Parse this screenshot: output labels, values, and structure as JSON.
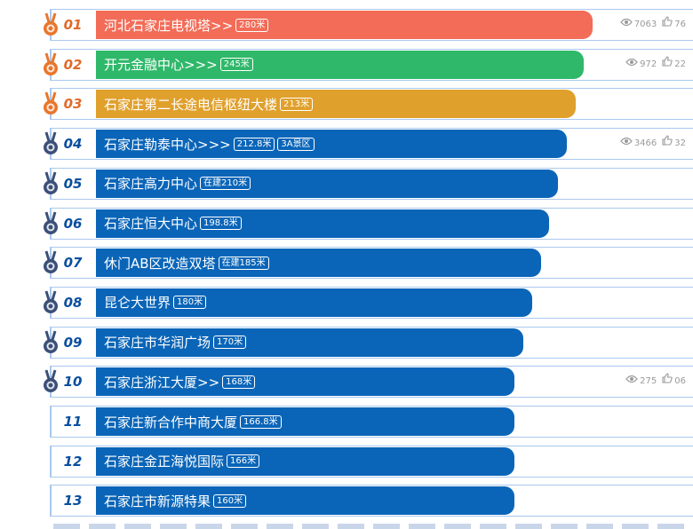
{
  "colors": {
    "gold": "#f26c58",
    "green": "#2fb86a",
    "bronze": "#e0a02c",
    "blue": "#0a65b8",
    "rank_top": "#e06a2a",
    "rank_blue": "#0a4f9e"
  },
  "items": [
    {
      "rank": "01",
      "name": "河北石家庄电视塔>>",
      "tag": "280米",
      "medal": "orange",
      "bar": "#f26c58",
      "views": "7063",
      "likes": "76",
      "progress": 0.86
    },
    {
      "rank": "02",
      "name": "开元金融中心>>>",
      "tag": "245米",
      "medal": "orange",
      "bar": "#2fb86a",
      "views": "972",
      "likes": "22",
      "progress": 0.845
    },
    {
      "rank": "03",
      "name": "石家庄第二长途电信枢纽大楼",
      "tag": "213米",
      "medal": "orange",
      "bar": "#e0a02c",
      "views": "",
      "likes": "",
      "progress": 0.83
    },
    {
      "rank": "04",
      "name": "石家庄勒泰中心>>>",
      "tag": "212.8米",
      "tag2": "3A景区",
      "medal": "blue",
      "bar": "#0a65b8",
      "views": "3466",
      "likes": "32",
      "progress": 0.815
    },
    {
      "rank": "05",
      "name": "石家庄高力中心",
      "tag": "在建210米",
      "medal": "blue",
      "bar": "#0a65b8",
      "views": "",
      "likes": "",
      "progress": 0.8
    },
    {
      "rank": "06",
      "name": "石家庄恒大中心",
      "tag": "198.8米",
      "medal": "blue",
      "bar": "#0a65b8",
      "views": "",
      "likes": "",
      "progress": 0.785
    },
    {
      "rank": "07",
      "name": "休门AB区改造双塔",
      "tag": "在建185米",
      "medal": "blue",
      "bar": "#0a65b8",
      "views": "",
      "likes": "",
      "progress": 0.77
    },
    {
      "rank": "08",
      "name": "昆仑大世界",
      "tag": "180米",
      "medal": "blue",
      "bar": "#0a65b8",
      "views": "",
      "likes": "",
      "progress": 0.755
    },
    {
      "rank": "09",
      "name": "石家庄市华润广场",
      "tag": "170米",
      "medal": "blue",
      "bar": "#0a65b8",
      "views": "",
      "likes": "",
      "progress": 0.74
    },
    {
      "rank": "10",
      "name": "石家庄浙江大厦>>",
      "tag": "168米",
      "medal": "blue",
      "bar": "#0a65b8",
      "views": "275",
      "likes": "06",
      "progress": 0.725
    },
    {
      "rank": "11",
      "name": "石家庄新合作中商大厦",
      "tag": "166.8米",
      "medal": "",
      "bar": "#0a65b8",
      "views": "",
      "likes": "",
      "progress": 0.725
    },
    {
      "rank": "12",
      "name": "石家庄金正海悦国际",
      "tag": "166米",
      "medal": "",
      "bar": "#0a65b8",
      "views": "",
      "likes": "",
      "progress": 0.725
    },
    {
      "rank": "13",
      "name": "石家庄市新源特果",
      "tag": "160米",
      "medal": "",
      "bar": "#0a65b8",
      "views": "",
      "likes": "",
      "progress": 0.725
    }
  ]
}
